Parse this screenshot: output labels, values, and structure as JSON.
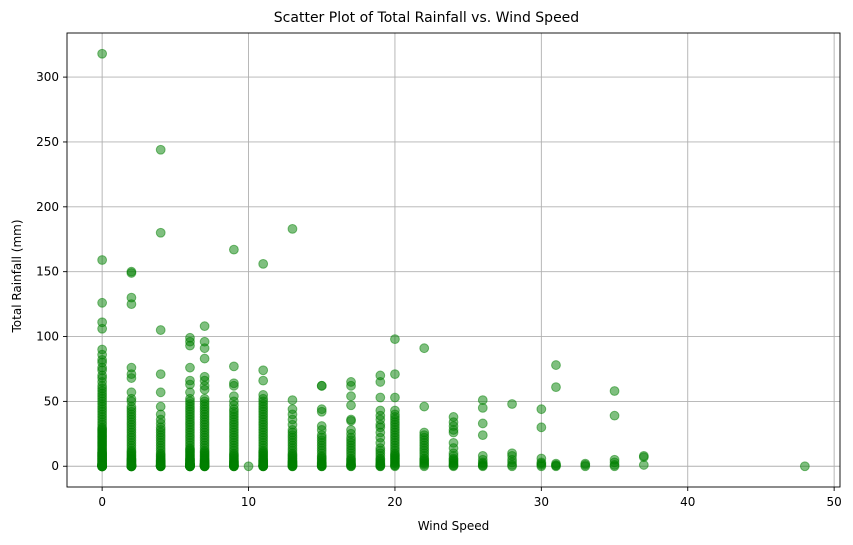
{
  "chart_data": {
    "type": "scatter",
    "title": "Scatter Plot of Total Rainfall vs. Wind Speed",
    "xlabel": "Wind Speed",
    "ylabel": "Total Rainfall (mm)",
    "xlim": [
      -2.4,
      50.4
    ],
    "ylim": [
      -16,
      334
    ],
    "xticks": [
      0,
      10,
      20,
      30,
      40,
      50
    ],
    "yticks": [
      0,
      50,
      100,
      150,
      200,
      250,
      300
    ],
    "grid": true,
    "marker_color": "#008000",
    "marker_alpha": 0.5,
    "series": [
      {
        "x": [
          0,
          0,
          0,
          0,
          0,
          0,
          0,
          0,
          0,
          0,
          0,
          0,
          0,
          0,
          0,
          0,
          0,
          0,
          0,
          0,
          0,
          0,
          0,
          0,
          0,
          0,
          0,
          0,
          0,
          0,
          0,
          0,
          0,
          0,
          0,
          0,
          0,
          0,
          0,
          0,
          0,
          0,
          0,
          0,
          0,
          0,
          0,
          0,
          0,
          0,
          0,
          0,
          0,
          0,
          0,
          0,
          0,
          0,
          0,
          0,
          0,
          0,
          0,
          0,
          0,
          0,
          0,
          0,
          0,
          0,
          0,
          0,
          0,
          0,
          0,
          0,
          0,
          0,
          0,
          0,
          0,
          0,
          0,
          0,
          0,
          0,
          0,
          0,
          0,
          0,
          2,
          2,
          2,
          2,
          2,
          2,
          2,
          2,
          2,
          2,
          2,
          2,
          2,
          2,
          2,
          2,
          2,
          2,
          2,
          2,
          2,
          2,
          2,
          2,
          2,
          2,
          2,
          2,
          2,
          2,
          2,
          2,
          2,
          2,
          2,
          2,
          2,
          2,
          2,
          2,
          2,
          2,
          2,
          2,
          2,
          2,
          2,
          2,
          2,
          2,
          2,
          2,
          2,
          2,
          2,
          2,
          2,
          4,
          4,
          4,
          4,
          4,
          4,
          4,
          4,
          4,
          4,
          4,
          4,
          4,
          4,
          4,
          4,
          4,
          4,
          4,
          4,
          4,
          4,
          4,
          4,
          4,
          4,
          4,
          4,
          4,
          4,
          4,
          4,
          4,
          4,
          4,
          4,
          4,
          4,
          4,
          4,
          4,
          4,
          6,
          6,
          6,
          6,
          6,
          6,
          6,
          6,
          6,
          6,
          6,
          6,
          6,
          6,
          6,
          6,
          6,
          6,
          6,
          6,
          6,
          6,
          6,
          6,
          6,
          6,
          6,
          6,
          6,
          6,
          6,
          6,
          6,
          6,
          6,
          6,
          6,
          6,
          6,
          6,
          6,
          6,
          6,
          6,
          6,
          6,
          6,
          6,
          6,
          6,
          6,
          6,
          6,
          6,
          6,
          6,
          6,
          6,
          6,
          6,
          7,
          7,
          7,
          7,
          7,
          7,
          7,
          7,
          7,
          7,
          7,
          7,
          7,
          7,
          7,
          7,
          7,
          7,
          7,
          7,
          7,
          7,
          7,
          7,
          7,
          7,
          7,
          7,
          7,
          7,
          7,
          7,
          7,
          7,
          7,
          7,
          7,
          7,
          7,
          7,
          7,
          7,
          7,
          7,
          7,
          7,
          7,
          7,
          7,
          7,
          7,
          7,
          7,
          7,
          7,
          7,
          9,
          9,
          9,
          9,
          9,
          9,
          9,
          9,
          9,
          9,
          9,
          9,
          9,
          9,
          9,
          9,
          9,
          9,
          9,
          9,
          9,
          9,
          9,
          9,
          9,
          9,
          9,
          9,
          9,
          9,
          9,
          9,
          9,
          9,
          9,
          9,
          9,
          9,
          9,
          9,
          9,
          9,
          10,
          11,
          11,
          11,
          11,
          11,
          11,
          11,
          11,
          11,
          11,
          11,
          11,
          11,
          11,
          11,
          11,
          11,
          11,
          11,
          11,
          11,
          11,
          11,
          11,
          11,
          11,
          11,
          11,
          11,
          11,
          11,
          11,
          11,
          11,
          11,
          11,
          11,
          11,
          11,
          11,
          11,
          11,
          11,
          11,
          11,
          11,
          11,
          11,
          13,
          13,
          13,
          13,
          13,
          13,
          13,
          13,
          13,
          13,
          13,
          13,
          13,
          13,
          13,
          13,
          13,
          13,
          13,
          13,
          13,
          13,
          13,
          13,
          13,
          13,
          13,
          13,
          13,
          13,
          13,
          13,
          15,
          15,
          15,
          15,
          15,
          15,
          15,
          15,
          15,
          15,
          15,
          15,
          15,
          15,
          15,
          15,
          15,
          15,
          15,
          15,
          15,
          15,
          15,
          15,
          15,
          15,
          15,
          15,
          17,
          17,
          17,
          17,
          17,
          17,
          17,
          17,
          17,
          17,
          17,
          17,
          17,
          17,
          17,
          17,
          17,
          17,
          17,
          17,
          17,
          17,
          17,
          17,
          17,
          17,
          19,
          19,
          19,
          19,
          19,
          19,
          19,
          19,
          19,
          19,
          19,
          19,
          19,
          19,
          19,
          19,
          19,
          19,
          19,
          19,
          19,
          19,
          19,
          19,
          19,
          20,
          20,
          20,
          20,
          20,
          20,
          20,
          20,
          20,
          20,
          20,
          20,
          20,
          20,
          20,
          20,
          20,
          20,
          20,
          20,
          20,
          20,
          20,
          20,
          20,
          20,
          20,
          20,
          20,
          20,
          20,
          22,
          22,
          22,
          22,
          22,
          22,
          22,
          22,
          22,
          22,
          22,
          22,
          22,
          22,
          22,
          22,
          22,
          22,
          22,
          24,
          24,
          24,
          24,
          24,
          24,
          24,
          24,
          24,
          24,
          24,
          24,
          24,
          24,
          24,
          24,
          24,
          26,
          26,
          26,
          26,
          26,
          26,
          26,
          26,
          26,
          26,
          26,
          28,
          28,
          28,
          28,
          28,
          28,
          28,
          30,
          30,
          30,
          30,
          30,
          30,
          30,
          31,
          31,
          31,
          31,
          31,
          31,
          33,
          33,
          33,
          35,
          35,
          35,
          35,
          35,
          35,
          37,
          37,
          37,
          48
        ],
        "y": [
          318,
          159,
          126,
          111,
          106,
          90,
          86,
          82,
          80,
          76,
          74,
          70,
          68,
          65,
          62,
          60,
          58,
          56,
          54,
          52,
          50,
          48,
          46,
          44,
          42,
          40,
          38,
          36,
          34,
          32,
          30,
          29,
          28,
          27,
          26,
          25,
          24,
          23,
          22,
          21,
          20,
          19,
          18,
          17,
          16,
          15,
          14,
          13,
          12,
          11,
          10.5,
          10,
          9.5,
          9,
          8.5,
          8,
          7.5,
          7,
          6.5,
          6,
          5.5,
          5,
          4.5,
          4,
          3.5,
          3,
          2.5,
          2,
          1.8,
          1.6,
          1.4,
          1.2,
          1,
          0.8,
          0.6,
          0.4,
          0.2,
          0,
          0,
          0,
          0,
          0,
          0,
          0,
          0,
          0,
          0,
          0,
          0,
          0,
          150,
          149,
          130,
          125,
          76,
          71,
          68,
          57,
          52,
          50,
          46,
          44,
          42,
          40,
          38,
          36,
          34,
          32,
          30,
          28,
          26,
          24,
          22,
          20,
          18,
          16,
          14,
          12,
          11,
          10,
          9,
          8,
          7,
          6,
          5.5,
          5,
          4.5,
          4,
          3.5,
          3,
          2.5,
          2,
          1.5,
          1,
          0.8,
          0.6,
          0.4,
          0.2,
          0,
          0,
          0,
          0,
          0,
          0,
          0,
          0,
          0,
          244,
          180,
          105,
          71,
          57,
          46,
          40,
          36,
          33,
          30,
          28,
          26,
          24,
          22,
          20,
          18,
          16,
          14,
          12,
          10,
          9,
          8,
          7,
          6,
          5,
          4.5,
          4,
          3.5,
          3,
          2.5,
          2,
          1.5,
          1,
          0.8,
          0.6,
          0.4,
          0.2,
          0,
          0,
          0,
          0,
          0,
          99,
          96,
          93,
          76,
          66,
          63,
          57,
          52,
          50,
          48,
          46,
          44,
          42,
          40,
          38,
          36,
          34,
          32,
          30,
          28,
          26,
          24,
          22,
          20,
          18,
          16,
          14,
          13,
          12,
          11,
          10,
          9,
          8,
          7,
          6,
          5.5,
          5,
          4.5,
          4,
          3.5,
          3,
          2.5,
          2,
          1.8,
          1.6,
          1.4,
          1.2,
          1,
          0.8,
          0.6,
          0.4,
          0.2,
          0,
          0,
          0,
          0,
          0,
          0,
          0,
          0,
          108,
          96,
          91,
          83,
          69,
          66,
          62,
          59,
          52,
          50,
          48,
          46,
          44,
          42,
          40,
          38,
          36,
          34,
          32,
          30,
          28,
          26,
          24,
          22,
          20,
          18,
          16,
          14,
          12,
          11,
          10,
          9,
          8,
          7,
          6,
          5,
          4.5,
          4,
          3.5,
          3,
          2.5,
          2,
          1.8,
          1.6,
          1.4,
          1.2,
          1,
          0.8,
          0.6,
          0.4,
          0.2,
          0,
          0,
          0,
          0,
          0,
          167,
          77,
          64,
          62,
          54,
          50,
          47,
          44,
          42,
          40,
          38,
          36,
          34,
          32,
          30,
          28,
          26,
          24,
          22,
          20,
          18,
          16,
          14,
          12,
          10,
          9,
          8,
          7,
          6,
          5,
          4,
          3.5,
          3,
          2.5,
          2,
          1.5,
          1,
          0.5,
          0,
          0,
          0,
          0,
          0,
          156,
          74,
          66,
          55,
          52,
          50,
          48,
          46,
          44,
          42,
          40,
          38,
          36,
          34,
          32,
          30,
          28,
          26,
          24,
          22,
          20,
          18,
          16,
          14,
          12,
          11,
          10,
          9,
          8,
          7,
          6,
          5,
          4.5,
          4,
          3.5,
          3,
          2.5,
          2,
          1.5,
          1,
          0.8,
          0.6,
          0.4,
          0.2,
          0,
          0,
          0,
          0,
          183,
          51,
          44,
          40,
          36,
          32,
          28,
          26,
          24,
          22,
          20,
          18,
          16,
          14,
          12,
          10,
          9,
          8,
          7,
          6,
          5,
          4,
          3.5,
          3,
          2.5,
          2,
          1.5,
          1,
          0.5,
          0,
          0,
          0,
          62,
          62,
          44,
          42,
          31,
          28,
          24,
          22,
          20,
          18,
          16,
          14,
          12,
          10,
          8,
          7,
          6,
          5,
          4,
          3,
          2.5,
          2,
          1.5,
          1,
          0.5,
          0,
          0,
          0,
          65,
          62,
          54,
          47,
          36,
          35,
          28,
          25,
          22,
          20,
          18,
          16,
          14,
          12,
          10,
          8,
          6,
          5,
          4,
          3,
          2,
          1.5,
          1,
          0.5,
          0,
          0,
          70,
          65,
          53,
          43,
          39,
          36,
          32,
          30,
          26,
          22,
          18,
          14,
          12,
          10,
          8,
          6,
          5,
          4,
          3,
          2,
          1.5,
          1,
          0.5,
          0,
          0,
          98,
          71,
          53,
          43,
          40,
          38,
          36,
          34,
          32,
          30,
          28,
          26,
          24,
          22,
          20,
          18,
          16,
          14,
          12,
          10,
          9,
          8,
          7,
          6,
          5,
          4,
          3,
          2,
          1,
          0.5,
          0,
          91,
          46,
          26,
          24,
          22,
          20,
          18,
          16,
          14,
          12,
          10,
          8,
          6,
          5,
          4,
          3,
          2,
          1,
          0,
          38,
          34,
          31,
          28,
          26,
          18,
          14,
          10,
          8,
          6,
          5,
          4,
          3,
          2,
          1,
          0.5,
          0,
          51,
          45,
          33,
          24,
          8,
          5,
          3,
          2,
          1,
          0.5,
          0,
          48,
          10,
          8,
          5,
          3,
          1,
          0,
          44,
          30,
          6,
          3,
          2,
          1,
          0,
          78,
          61,
          2,
          1,
          0.5,
          0,
          2,
          1,
          0,
          58,
          39,
          5,
          3,
          1,
          0,
          8,
          7,
          1,
          0
        ]
      }
    ]
  }
}
